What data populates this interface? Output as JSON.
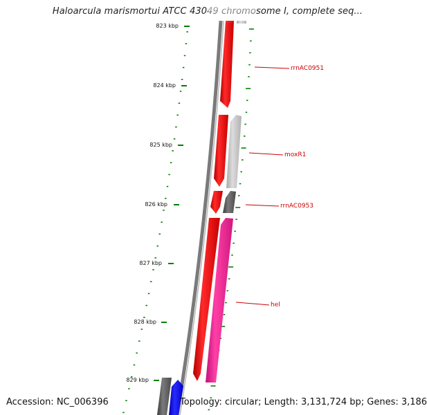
{
  "title": "Haloarcula marismortui ATCC 43049 chromosome I, complete seq...",
  "footer": {
    "accession": "Accession: NC_006396",
    "topology": "Topology: circular; Length: 3,131,724 bp; Genes: 3,186"
  },
  "ticks": [
    {
      "label": "823 kbp"
    },
    {
      "label": "824 kbp"
    },
    {
      "label": "825 kbp"
    },
    {
      "label": "826 kbp"
    },
    {
      "label": "827 kbp"
    },
    {
      "label": "828 kbp"
    },
    {
      "label": "829 kbp"
    }
  ],
  "genes": [
    {
      "name": "rrnAC0951"
    },
    {
      "name": "moxR1"
    },
    {
      "name": "rrnAC0953"
    },
    {
      "name": "hel"
    }
  ],
  "colors": {
    "forward_gene": "#ff0000",
    "reverse_gene": "#ff1493",
    "blue_gene": "#0000ff",
    "grey_light": "#c8c8c8",
    "grey_dark": "#606060",
    "backbone": "#808080",
    "tick": "#008000",
    "label_text": "#cc0000"
  }
}
